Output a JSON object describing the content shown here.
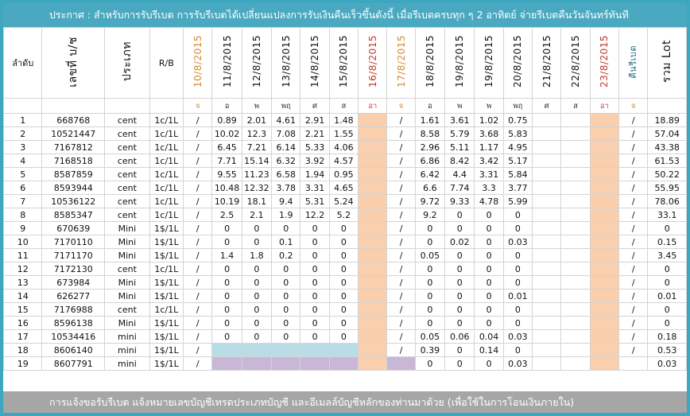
{
  "header_text": "ประกาศ : สำหรับการรับรีเบต  การรับรีเบตได้เปลี่ยนแปลงการรับเงินคืนเร็วขึ้นดังนี้   เมื่อรีเบตครบทุก ๆ 2 อาทิตย์ จ่ายรีเบตคืนวันจันทร์ทันที",
  "footer_text": "การแจ้งขอรับรีเบต  แจ้งหมายเลขบัญชีเทรดประเภทบัญชี และอีเมลล์บัญชีหลักของท่านมาด้วย   (เพื่อใช้ในการโอนเงินภายใน)",
  "columns": {
    "index": "ลำดับ",
    "account": "เลขที่ บ/ช",
    "type": "ประเภท",
    "rb": "R/B",
    "dates": [
      "10/8/2015",
      "11/8/2015",
      "12/8/2015",
      "13/8/2015",
      "14/8/2015",
      "15/8/2015",
      "16/8/2015",
      "17/8/2015",
      "18/8/2015",
      "19/8/2015",
      "19/8/2015",
      "20/8/2015",
      "21/8/2015",
      "22/8/2015",
      "23/8/2015"
    ],
    "rebate": "คืนรีเบต",
    "total": "รวม Lot"
  },
  "days": [
    "จ",
    "อ",
    "พ",
    "พฤ",
    "ศ",
    "ส",
    "อา",
    "จ",
    "อ",
    "พ",
    "พ",
    "พฤ",
    "ศ",
    "ส",
    "อา",
    "จ"
  ],
  "colors": {
    "topbar": "#4aa9c0",
    "bottombar": "#a6a6a6",
    "weekend": "#f9cfae",
    "total_text": "#2f8aae",
    "inactive_red": "#d14343"
  },
  "rows": [
    {
      "no": "1",
      "acct": "668768",
      "type": "cent",
      "rb": "1c/1L",
      "d0": "/",
      "v": [
        "0.89",
        "2.01",
        "4.61",
        "2.91",
        "1.48"
      ],
      "d7": "/",
      "w": [
        "1.61",
        "3.61",
        "1.02",
        "0.75",
        "",
        ""
      ],
      "rebate": "/",
      "total": "18.89"
    },
    {
      "no": "2",
      "acct": "10521447",
      "type": "cent",
      "rb": "1c/1L",
      "d0": "/",
      "v": [
        "10.02",
        "12.3",
        "7.08",
        "2.21",
        "1.55"
      ],
      "d7": "/",
      "w": [
        "8.58",
        "5.79",
        "3.68",
        "5.83",
        "",
        ""
      ],
      "rebate": "/",
      "total": "57.04"
    },
    {
      "no": "3",
      "acct": "7167812",
      "type": "cent",
      "rb": "1c/1L",
      "d0": "/",
      "v": [
        "6.45",
        "7.21",
        "6.14",
        "5.33",
        "4.06"
      ],
      "d7": "/",
      "w": [
        "2.96",
        "5.11",
        "1.17",
        "4.95",
        "",
        ""
      ],
      "rebate": "/",
      "total": "43.38"
    },
    {
      "no": "4",
      "acct": "7168518",
      "type": "cent",
      "rb": "1c/1L",
      "d0": "/",
      "v": [
        "7.71",
        "15.14",
        "6.32",
        "3.92",
        "4.57"
      ],
      "d7": "/",
      "w": [
        "6.86",
        "8.42",
        "3.42",
        "5.17",
        "",
        ""
      ],
      "rebate": "/",
      "total": "61.53"
    },
    {
      "no": "5",
      "acct": "8587859",
      "type": "cent",
      "rb": "1c/1L",
      "d0": "/",
      "v": [
        "9.55",
        "11.23",
        "6.58",
        "1.94",
        "0.95"
      ],
      "d7": "/",
      "w": [
        "6.42",
        "4.4",
        "3.31",
        "5.84",
        "",
        ""
      ],
      "rebate": "/",
      "total": "50.22"
    },
    {
      "no": "6",
      "acct": "8593944",
      "type": "cent",
      "rb": "1c/1L",
      "d0": "/",
      "v": [
        "10.48",
        "12.32",
        "3.78",
        "3.31",
        "4.65"
      ],
      "d7": "/",
      "w": [
        "6.6",
        "7.74",
        "3.3",
        "3.77",
        "",
        ""
      ],
      "rebate": "/",
      "total": "55.95"
    },
    {
      "no": "7",
      "acct": "10536122",
      "type": "cent",
      "rb": "1c/1L",
      "d0": "/",
      "v": [
        "10.19",
        "18.1",
        "9.4",
        "5.31",
        "5.24"
      ],
      "d7": "/",
      "w": [
        "9.72",
        "9.33",
        "4.78",
        "5.99",
        "",
        ""
      ],
      "rebate": "/",
      "total": "78.06"
    },
    {
      "no": "8",
      "acct": "8585347",
      "type": "cent",
      "rb": "1c/1L",
      "d0": "/",
      "v": [
        "2.5",
        "2.1",
        "1.9",
        "12.2",
        "5.2"
      ],
      "d7": "/",
      "w": [
        "9.2",
        "0",
        "0",
        "0",
        "",
        ""
      ],
      "rebate": "/",
      "total": "33.1"
    },
    {
      "no": "9",
      "acct": "670639",
      "type": "Mini",
      "rb": "1$/1L",
      "d0": "/",
      "v": [
        "0",
        "0",
        "0",
        "0",
        "0"
      ],
      "d7": "/",
      "w": [
        "0",
        "0",
        "0",
        "0",
        "",
        ""
      ],
      "rebate": "/",
      "total": "0"
    },
    {
      "no": "10",
      "acct": "7170110",
      "type": "Mini",
      "rb": "1$/1L",
      "d0": "/",
      "v": [
        "0",
        "0",
        "0.1",
        "0",
        "0"
      ],
      "d7": "/",
      "w": [
        "0",
        "0.02",
        "0",
        "0.03",
        "",
        ""
      ],
      "rebate": "/",
      "total": "0.15"
    },
    {
      "no": "11",
      "acct": "7171170",
      "type": "Mini",
      "rb": "1$/1L",
      "d0": "/",
      "v": [
        "1.4",
        "1.8",
        "0.2",
        "0",
        "0"
      ],
      "d7": "/",
      "w": [
        "0.05",
        "0",
        "0",
        "0",
        "",
        ""
      ],
      "rebate": "/",
      "total": "3.45"
    },
    {
      "no": "12",
      "acct": "7172130",
      "type": "cent",
      "rb": "1c/1L",
      "red": true,
      "d0": "/",
      "v": [
        "0",
        "0",
        "0",
        "0",
        "0"
      ],
      "d7": "/",
      "w": [
        "0",
        "0",
        "0",
        "0",
        "",
        ""
      ],
      "rebate": "/",
      "total": "0"
    },
    {
      "no": "13",
      "acct": "673984",
      "type": "Mini",
      "rb": "1$/1L",
      "red": true,
      "d0": "/",
      "v": [
        "0",
        "0",
        "0",
        "0",
        "0"
      ],
      "d7": "/",
      "w": [
        "0",
        "0",
        "0",
        "0",
        "",
        ""
      ],
      "rebate": "/",
      "total": "0"
    },
    {
      "no": "14",
      "acct": "626277",
      "type": "Mini",
      "rb": "1$/1L",
      "d0": "/",
      "v": [
        "0",
        "0",
        "0",
        "0",
        "0"
      ],
      "d7": "/",
      "w": [
        "0",
        "0",
        "0",
        "0.01",
        "",
        ""
      ],
      "rebate": "/",
      "total": "0.01"
    },
    {
      "no": "15",
      "acct": "7176988",
      "type": "cent",
      "rb": "1c/1L",
      "red": true,
      "d0": "/",
      "v": [
        "0",
        "0",
        "0",
        "0",
        "0"
      ],
      "d7": "/",
      "w": [
        "0",
        "0",
        "0",
        "0",
        "",
        ""
      ],
      "rebate": "/",
      "total": "0"
    },
    {
      "no": "16",
      "acct": "8596138",
      "type": "Mini",
      "rb": "1$/1L",
      "d0": "/",
      "v": [
        "0",
        "0",
        "0",
        "0",
        "0"
      ],
      "d7": "/",
      "w": [
        "0",
        "0",
        "0",
        "0",
        "",
        ""
      ],
      "rebate": "/",
      "total": "0"
    },
    {
      "no": "17",
      "acct": "10534416",
      "type": "mini",
      "rb": "1$/1L",
      "d0": "/",
      "v": [
        "0",
        "0",
        "0",
        "0",
        "0"
      ],
      "d7": "/",
      "w": [
        "0.05",
        "0.06",
        "0.04",
        "0.03",
        "",
        ""
      ],
      "rebate": "/",
      "total": "0.18"
    },
    {
      "no": "18",
      "acct": "8606140",
      "type": "mini",
      "rb": "1$/1L",
      "d0": "/",
      "v": [
        "",
        "",
        "",
        "",
        ""
      ],
      "d7": "/",
      "w": [
        "0.39",
        "0",
        "0.14",
        "0",
        "",
        ""
      ],
      "rebate": "/",
      "total": "0.53",
      "vfill": "lb",
      "total_black": true
    },
    {
      "no": "19",
      "acct": "8607791",
      "type": "mini",
      "rb": "1$/1L",
      "d0": "/",
      "v": [
        "",
        "",
        "",
        "",
        ""
      ],
      "d7": "",
      "w": [
        "0",
        "0",
        "0",
        "0.03",
        "",
        ""
      ],
      "rebate": "",
      "total": "0.03",
      "vfill": "lv",
      "d7fill": "lv",
      "total_black": true
    }
  ]
}
